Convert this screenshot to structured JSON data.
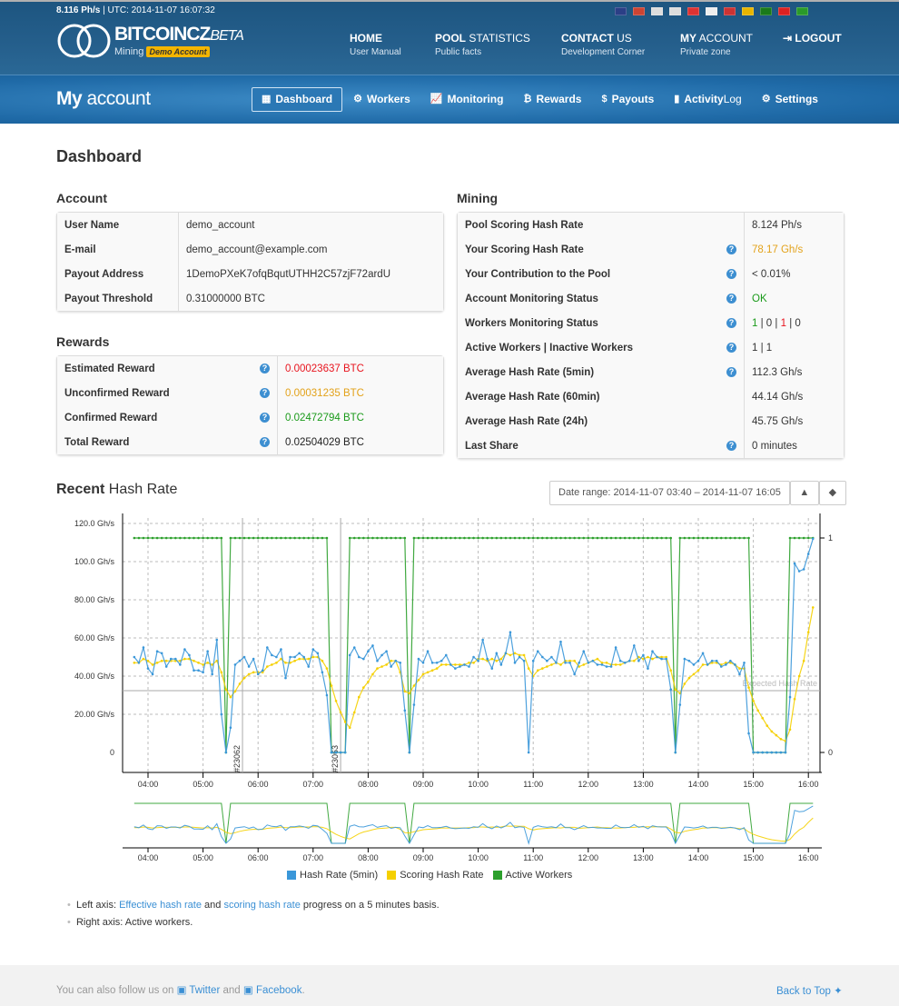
{
  "topbar": {
    "hashrate": "8.116 Ph/s",
    "utc": "UTC: 2014-11-07 16:07:32",
    "flags": [
      "en",
      "de",
      "fr",
      "ru",
      "cz",
      "pl",
      "nl",
      "es",
      "pt",
      "cn",
      "eo"
    ]
  },
  "logo": {
    "name": "BITCOINCZ",
    "beta": "BETA",
    "sub": "Mining",
    "badge": "Demo Account"
  },
  "nav": [
    {
      "bold": "HOME",
      "light": "",
      "sub": "User Manual"
    },
    {
      "bold": "POOL",
      "light": " STATISTICS",
      "sub": "Public facts"
    },
    {
      "bold": "CONTACT",
      "light": " US",
      "sub": "Development Corner"
    },
    {
      "bold": "MY",
      "light": " ACCOUNT",
      "sub": "Private zone"
    }
  ],
  "logout": "LOGOUT",
  "page_title": {
    "bold": "My",
    "light": " account"
  },
  "tabs": [
    {
      "label": "Dashboard",
      "icon": "grid-icon"
    },
    {
      "label": "Workers",
      "icon": "gears-icon"
    },
    {
      "label": "Monitoring",
      "icon": "chart-icon"
    },
    {
      "label": "Rewards",
      "icon": "bitcoin-icon"
    },
    {
      "label": "Payouts",
      "icon": "dollar-icon"
    },
    {
      "label": "Activity",
      "label2": " Log",
      "icon": "book-icon"
    },
    {
      "label": "Settings",
      "icon": "gear-icon"
    }
  ],
  "heading": "Dashboard",
  "account": {
    "title": "Account",
    "rows": [
      [
        "User Name",
        "demo_account"
      ],
      [
        "E-mail",
        "demo_account@example.com"
      ],
      [
        "Payout Address",
        "1DemoPXeK7ofqBqutUTHH2C57zjF72ardU"
      ],
      [
        "Payout Threshold",
        "0.31000000 BTC"
      ]
    ]
  },
  "rewards": {
    "title": "Rewards",
    "rows": [
      [
        "Estimated Reward",
        "0.00023637 BTC",
        "#e8141e"
      ],
      [
        "Unconfirmed Reward",
        "0.00031235 BTC",
        "#e3a21a"
      ],
      [
        "Confirmed Reward",
        "0.02472794 BTC",
        "#1a9a1a"
      ],
      [
        "Total Reward",
        "0.02504029 BTC",
        "#222222"
      ]
    ]
  },
  "mining": {
    "title": "Mining",
    "rows": [
      {
        "k": "Pool Scoring Hash Rate",
        "v": "8.124 Ph/s",
        "help": false
      },
      {
        "k": "Your Scoring Hash Rate",
        "v": "78.17 Gh/s",
        "help": true,
        "color": "#e3a21a"
      },
      {
        "k": "Your Contribution to the Pool",
        "v": "< 0.01%",
        "help": true
      },
      {
        "k": "Account Monitoring Status",
        "v": "OK",
        "help": true,
        "color": "#1a9a1a"
      },
      {
        "k": "Workers Monitoring Status",
        "v": "",
        "help": true,
        "parts": [
          "1",
          "0",
          "1",
          "0"
        ]
      },
      {
        "k": "Active Workers | Inactive Workers",
        "v": "1 | 1",
        "help": true
      },
      {
        "k": "Average Hash Rate (5min)",
        "v": "112.3 Gh/s",
        "help": true
      },
      {
        "k": "Average Hash Rate (60min)",
        "v": "44.14 Gh/s",
        "help": false
      },
      {
        "k": "Average Hash Rate (24h)",
        "v": "45.75 Gh/s",
        "help": false
      },
      {
        "k": "Last Share",
        "v": "0 minutes",
        "help": true
      }
    ]
  },
  "recent": {
    "bold": "Recent",
    "light": " Hash Rate",
    "date_range": "Date range: 2014-11-07 03:40 – 2014-11-07 16:05"
  },
  "chart_data": {
    "type": "line",
    "x_start": "03:45",
    "x_step_minutes": 5,
    "x_ticks": [
      "04:00",
      "05:00",
      "06:00",
      "07:00",
      "08:00",
      "09:00",
      "10:00",
      "11:00",
      "12:00",
      "13:00",
      "14:00",
      "15:00",
      "16:00"
    ],
    "y_left_ticks": [
      "0",
      "20.00 Gh/s",
      "40.00 Gh/s",
      "60.00 Gh/s",
      "80.00 Gh/s",
      "100.0 Gh/s",
      "120.0 Gh/s"
    ],
    "ylim_left": [
      0,
      120
    ],
    "y_right_ticks": [
      "0",
      "1"
    ],
    "ylim_right": [
      0,
      1
    ],
    "grid": true,
    "legend": "bottom",
    "expected_hash_rate": {
      "label": "Expected Hash Rate",
      "value": 32.4
    },
    "markers": [
      {
        "label": "#23062",
        "time": "05:43"
      },
      {
        "label": "#23063",
        "time": "07:30"
      }
    ],
    "series": [
      {
        "name": "Hash Rate (5min)",
        "color": "#3a97d9",
        "axis": "left",
        "values": [
          50,
          47,
          55,
          44,
          41,
          53,
          52,
          45,
          49,
          49,
          46,
          54,
          51,
          43,
          43,
          42,
          53,
          41,
          59,
          20,
          0,
          13,
          46,
          48,
          50,
          45,
          49,
          41,
          43,
          55,
          51,
          50,
          54,
          39,
          50,
          50,
          52,
          50,
          45,
          54,
          52,
          42,
          30,
          0,
          0,
          0,
          0,
          51,
          55,
          50,
          49,
          53,
          56,
          48,
          51,
          53,
          45,
          48,
          47,
          22,
          0,
          25,
          49,
          47,
          53,
          47,
          47,
          48,
          51,
          46,
          44,
          45,
          46,
          45,
          50,
          48,
          59,
          49,
          44,
          52,
          46,
          52,
          63,
          47,
          50,
          48,
          0,
          48,
          53,
          50,
          48,
          50,
          47,
          58,
          47,
          47,
          41,
          47,
          53,
          47,
          48,
          46,
          46,
          45,
          45,
          55,
          48,
          47,
          48,
          56,
          48,
          51,
          44,
          53,
          50,
          49,
          49,
          33,
          0,
          25,
          49,
          48,
          46,
          48,
          52,
          46,
          48,
          48,
          45,
          46,
          48,
          46,
          41,
          47,
          10,
          0,
          0,
          0,
          0,
          0,
          0,
          0,
          0,
          29,
          99,
          95,
          96,
          104,
          112
        ]
      },
      {
        "name": "Scoring Hash Rate",
        "color": "#f5d000",
        "axis": "left",
        "values": [
          47,
          47,
          49,
          48,
          46,
          47,
          48,
          48,
          48,
          48,
          48,
          49,
          49,
          48,
          47,
          46,
          47,
          46,
          48,
          42,
          33,
          29,
          32,
          36,
          39,
          41,
          42,
          42,
          42,
          45,
          46,
          47,
          49,
          47,
          47,
          48,
          49,
          49,
          49,
          50,
          50,
          48,
          44,
          35,
          27,
          21,
          16,
          13,
          21,
          29,
          34,
          37,
          41,
          44,
          45,
          46,
          48,
          48,
          42,
          32,
          31,
          35,
          38,
          41,
          42,
          43,
          44,
          46,
          46,
          46,
          46,
          46,
          46,
          47,
          47,
          49,
          49,
          48,
          49,
          48,
          49,
          52,
          51,
          52,
          51,
          51,
          44,
          40,
          43,
          44,
          45,
          46,
          47,
          46,
          48,
          48,
          48,
          45,
          46,
          47,
          48,
          49,
          47,
          47,
          46,
          46,
          46,
          47,
          48,
          48,
          50,
          49,
          50,
          49,
          50,
          50,
          50,
          43,
          33,
          31,
          36,
          39,
          41,
          43,
          46,
          46,
          47,
          47,
          46,
          47,
          47,
          46,
          44,
          44,
          34,
          27,
          22,
          18,
          14,
          11,
          9,
          7,
          6,
          12,
          28,
          40,
          48,
          63,
          76
        ]
      },
      {
        "name": "Active Workers",
        "color": "#2ca02c",
        "axis": "right",
        "values": [
          1,
          1,
          1,
          1,
          1,
          1,
          1,
          1,
          1,
          1,
          1,
          1,
          1,
          1,
          1,
          1,
          1,
          1,
          1,
          1,
          0,
          1,
          1,
          1,
          1,
          1,
          1,
          1,
          1,
          1,
          1,
          1,
          1,
          1,
          1,
          1,
          1,
          1,
          1,
          1,
          1,
          1,
          1,
          0,
          0,
          0,
          0,
          1,
          1,
          1,
          1,
          1,
          1,
          1,
          1,
          1,
          1,
          1,
          1,
          1,
          0,
          1,
          1,
          1,
          1,
          1,
          1,
          1,
          1,
          1,
          1,
          1,
          1,
          1,
          1,
          1,
          1,
          1,
          1,
          1,
          1,
          1,
          1,
          1,
          1,
          1,
          1,
          1,
          1,
          1,
          1,
          1,
          1,
          1,
          1,
          1,
          1,
          1,
          1,
          1,
          1,
          1,
          1,
          1,
          1,
          1,
          1,
          1,
          1,
          1,
          1,
          1,
          1,
          1,
          1,
          1,
          1,
          1,
          0,
          1,
          1,
          1,
          1,
          1,
          1,
          1,
          1,
          1,
          1,
          1,
          1,
          1,
          1,
          1,
          1,
          0,
          0,
          0,
          0,
          0,
          0,
          0,
          0,
          1,
          1,
          1,
          1,
          1,
          1
        ]
      }
    ]
  },
  "notes": {
    "n1_pre": "Left axis: ",
    "n1_link1": "Effective hash rate",
    "n1_mid": " and ",
    "n1_link2": "scoring hash rate",
    "n1_post": " progress on a 5 minutes basis.",
    "n2": "Right axis: Active workers."
  },
  "footer": {
    "pre": "You can also follow us on ",
    "twitter": "Twitter",
    "and": " and ",
    "facebook": "Facebook",
    "dot": ".",
    "back": "Back to Top"
  }
}
